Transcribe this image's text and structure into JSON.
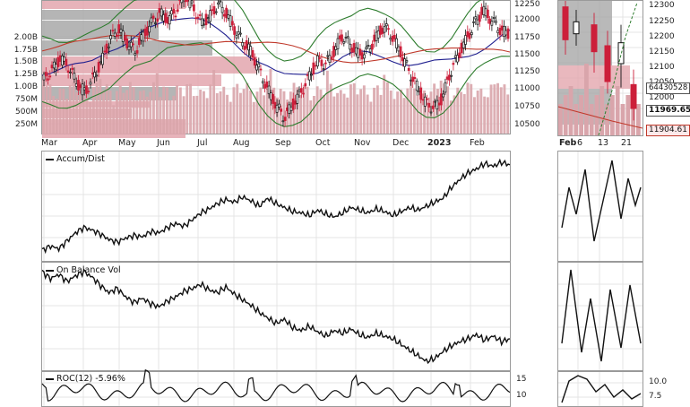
{
  "chart_data": [
    {
      "type": "line",
      "description_panel": "price",
      "series": [
        {
          "values": [
            11250,
            11400,
            11600,
            11450,
            11200,
            11050,
            11300,
            11550,
            11900,
            12050,
            11850,
            11700,
            11950,
            12150,
            12300,
            12200,
            12350,
            12600,
            12400,
            12150,
            12250,
            12450,
            12300,
            12050,
            11850,
            11700,
            11400,
            11100,
            10850,
            10650,
            10850,
            11050,
            11300,
            11550,
            11500,
            11700,
            11950,
            11800,
            11650,
            11700,
            11900,
            12100,
            11950,
            11700,
            11400,
            11150,
            10900,
            10800,
            10950,
            11350,
            11650,
            11900,
            12150,
            12350,
            12200,
            12050,
            11970
          ]
        }
      ],
      "y_ticks": [
        "12250",
        "12000",
        "11750",
        "11500",
        "11250",
        "11000",
        "10750",
        "10500"
      ],
      "volume_ticks": [
        "2.00B",
        "1.75B",
        "1.50B",
        "1.25B",
        "1.00B",
        "750M",
        "500M",
        "250M"
      ],
      "x_ticks": [
        "Mar",
        "Apr",
        "May",
        "Jun",
        "Jul",
        "Aug",
        "Sep",
        "Oct",
        "Nov",
        "Dec",
        "2023",
        "Feb"
      ],
      "top_tick": "12250"
    },
    {
      "type": "line",
      "title": "Accum/Dist",
      "series": [
        {
          "values": [
            5,
            8,
            6,
            12,
            18,
            22,
            20,
            17,
            13,
            11,
            14,
            16,
            15,
            19,
            18,
            22,
            25,
            23,
            28,
            33,
            36,
            40,
            43,
            41,
            45,
            42,
            38,
            44,
            40,
            37,
            34,
            33,
            31,
            35,
            32,
            30,
            33,
            37,
            35,
            33,
            36,
            34,
            31,
            34,
            37,
            35,
            38,
            41,
            44,
            52,
            58,
            63,
            66,
            70,
            68,
            71,
            69
          ]
        }
      ]
    },
    {
      "type": "line",
      "title": "On Balance Vol",
      "series": [
        {
          "values": [
            70,
            65,
            68,
            63,
            67,
            70,
            66,
            60,
            55,
            58,
            52,
            48,
            51,
            47,
            45,
            49,
            52,
            56,
            58,
            61,
            57,
            55,
            59,
            54,
            50,
            46,
            41,
            37,
            33,
            36,
            30,
            28,
            31,
            27,
            24,
            28,
            26,
            29,
            25,
            23,
            26,
            24,
            22,
            18,
            14,
            10,
            6,
            8,
            13,
            17,
            20,
            22,
            25,
            21,
            24,
            20,
            22
          ]
        }
      ]
    },
    {
      "type": "line",
      "title": "ROC(12) -5.96%",
      "y_ticks": [
        "15",
        "10"
      ]
    },
    {
      "type": "line",
      "description_panel": "zoom-price",
      "x_ticks": [
        "Feb",
        "6",
        "13",
        "21"
      ],
      "y_ticks": [
        "12300",
        "12250",
        "12200",
        "12150",
        "12100",
        "12050",
        "12000"
      ],
      "labels": {
        "last_value": "11969.65",
        "sma_value": "11904.61",
        "volume_value": "64430528"
      }
    },
    {
      "type": "line",
      "description_panel": "zoom-roc",
      "y_ticks": [
        "10.0",
        "7.5"
      ]
    }
  ],
  "colors": {
    "up_candle": "#111111",
    "down_candle": "#cc1f3a",
    "bollinger": "#2e7d2e",
    "sma_short": "#1f1f8f",
    "sma_long": "#c0392b",
    "volume": "#d9a5ab",
    "volume_profile": "#a8a8a8",
    "volume_profile_red": "#e3a6ae",
    "line": "#111111",
    "grid": "#e4e4e4"
  }
}
